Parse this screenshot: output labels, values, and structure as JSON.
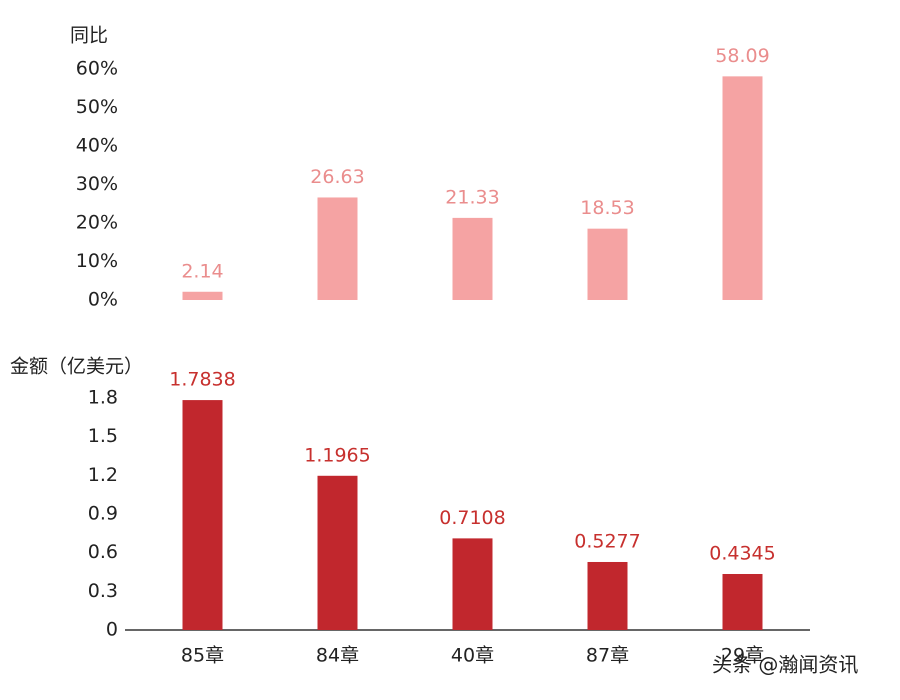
{
  "chart_data": [
    {
      "type": "bar",
      "y_label": "同比",
      "values": [
        2.14,
        26.63,
        21.33,
        18.53,
        58.09
      ],
      "color": "#f5a3a3",
      "label_color": "#ea8d8d",
      "ylim": [
        0,
        60
      ],
      "yticks": [
        {
          "value": 0,
          "label": "0%"
        },
        {
          "value": 10,
          "label": "10%"
        },
        {
          "value": 20,
          "label": "20%"
        },
        {
          "value": 30,
          "label": "30%"
        },
        {
          "value": 40,
          "label": "40%"
        },
        {
          "value": 50,
          "label": "50%"
        },
        {
          "value": 60,
          "label": "60%"
        }
      ]
    },
    {
      "type": "bar",
      "y_label": "金额（亿美元）",
      "categories": [
        "85章",
        "84章",
        "40章",
        "87章",
        "29章"
      ],
      "values": [
        1.7838,
        1.1965,
        0.7108,
        0.5277,
        0.4345
      ],
      "color": "#c1272d",
      "label_color": "#c7302e",
      "ylim": [
        0,
        1.8
      ],
      "yticks": [
        0,
        0.3,
        0.6,
        0.9,
        1.2,
        1.5,
        1.8
      ]
    }
  ],
  "watermark": "头条 @瀚闻资讯"
}
